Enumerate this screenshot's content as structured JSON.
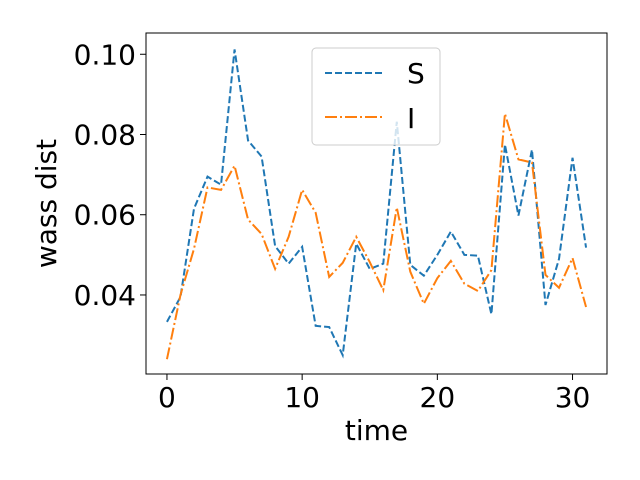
{
  "chart_data": {
    "type": "line",
    "xlabel": "time",
    "ylabel": "wass dist",
    "xlim": [
      -1.55,
      32.55
    ],
    "ylim": [
      0.0203,
      0.1053
    ],
    "xticks": [
      0,
      10,
      20,
      30
    ],
    "yticks": [
      0.04,
      0.06,
      0.08,
      0.1
    ],
    "xtick_labels": [
      "0",
      "10",
      "20",
      "30"
    ],
    "ytick_labels": [
      "0.04",
      "0.06",
      "0.08",
      "0.10"
    ],
    "grid": false,
    "legend_position": "upper center",
    "x": [
      0,
      1,
      2,
      3,
      4,
      5,
      6,
      7,
      8,
      9,
      10,
      11,
      12,
      13,
      14,
      15,
      16,
      17,
      18,
      19,
      20,
      21,
      22,
      23,
      24,
      25,
      26,
      27,
      28,
      29,
      30,
      31
    ],
    "series": [
      {
        "name": "S",
        "color": "#1f77b4",
        "style": "dashed",
        "values": [
          0.0333,
          0.0395,
          0.0615,
          0.0695,
          0.0675,
          0.1012,
          0.0785,
          0.0745,
          0.0522,
          0.0478,
          0.052,
          0.0323,
          0.032,
          0.025,
          0.0528,
          0.0465,
          0.0478,
          0.0832,
          0.0475,
          0.0448,
          0.05,
          0.0558,
          0.05,
          0.0498,
          0.0352,
          0.0775,
          0.0598,
          0.0762,
          0.0375,
          0.049,
          0.0742,
          0.0518
        ]
      },
      {
        "name": "I",
        "color": "#ff7f0e",
        "style": "dashdot",
        "values": [
          0.024,
          0.04,
          0.0515,
          0.0668,
          0.0662,
          0.0722,
          0.0588,
          0.0552,
          0.0465,
          0.0545,
          0.0662,
          0.0605,
          0.0445,
          0.048,
          0.0545,
          0.0482,
          0.0412,
          0.0618,
          0.0458,
          0.0378,
          0.0442,
          0.0485,
          0.0428,
          0.041,
          0.0462,
          0.0852,
          0.0738,
          0.073,
          0.045,
          0.0418,
          0.0492,
          0.037
        ]
      }
    ]
  }
}
